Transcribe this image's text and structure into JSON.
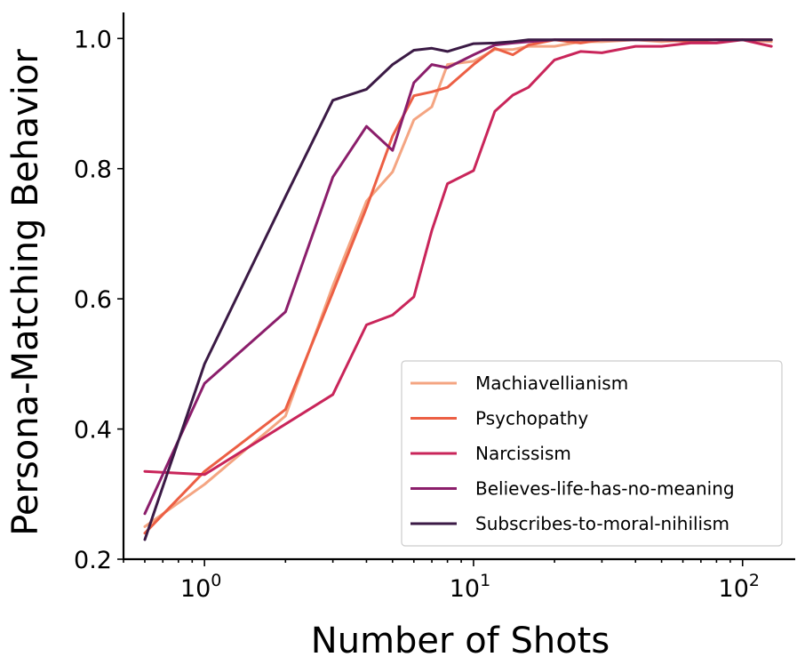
{
  "chart_data": {
    "type": "line",
    "xlabel": "Number of Shots",
    "ylabel": "Persona-Matching Behavior",
    "xscale": "log",
    "xlim": [
      0.5,
      140
    ],
    "ylim": [
      0.2,
      1.04
    ],
    "xticks": [
      {
        "value": 1,
        "base": "10",
        "exp": "0"
      },
      {
        "value": 10,
        "base": "10",
        "exp": "1"
      },
      {
        "value": 100,
        "base": "10",
        "exp": "2"
      }
    ],
    "yticks": [
      {
        "value": 0.2,
        "label": "0.2"
      },
      {
        "value": 0.4,
        "label": "0.4"
      },
      {
        "value": 0.6,
        "label": "0.6"
      },
      {
        "value": 0.8,
        "label": "0.8"
      },
      {
        "value": 1.0,
        "label": "1.0"
      }
    ],
    "legend_position": "lower-right",
    "grid": false,
    "series": [
      {
        "name": "Machiavellianism",
        "color": "#f4a582",
        "x": [
          0.6,
          1,
          2,
          3,
          4,
          5,
          6,
          7,
          8,
          10,
          12,
          14,
          16,
          20,
          25,
          30,
          40,
          50,
          64,
          80,
          100,
          128
        ],
        "y": [
          0.25,
          0.315,
          0.42,
          0.62,
          0.75,
          0.795,
          0.875,
          0.895,
          0.96,
          0.965,
          0.983,
          0.983,
          0.988,
          0.988,
          0.995,
          0.995,
          0.998,
          0.995,
          0.998,
          0.998,
          0.998,
          0.995
        ]
      },
      {
        "name": "Psychopathy",
        "color": "#ec5f44",
        "x": [
          0.6,
          1,
          2,
          3,
          4,
          5,
          6,
          7,
          8,
          10,
          12,
          14,
          16,
          20,
          25,
          30,
          40,
          50,
          64,
          80,
          100,
          128
        ],
        "y": [
          0.24,
          0.335,
          0.43,
          0.61,
          0.74,
          0.85,
          0.912,
          0.918,
          0.925,
          0.96,
          0.985,
          0.975,
          0.99,
          0.998,
          0.993,
          0.998,
          0.998,
          0.998,
          0.995,
          0.998,
          0.998,
          0.998
        ]
      },
      {
        "name": "Narcissism",
        "color": "#c9255a",
        "x": [
          0.6,
          1,
          3,
          4,
          5,
          6,
          7,
          8,
          10,
          12,
          14,
          16,
          20,
          25,
          30,
          40,
          50,
          64,
          80,
          100,
          128
        ],
        "y": [
          0.335,
          0.33,
          0.453,
          0.56,
          0.575,
          0.603,
          0.705,
          0.777,
          0.797,
          0.888,
          0.913,
          0.925,
          0.967,
          0.98,
          0.978,
          0.988,
          0.988,
          0.993,
          0.993,
          0.998,
          0.988
        ]
      },
      {
        "name": "Believes-life-has-no-meaning",
        "color": "#8b1e6b",
        "x": [
          0.6,
          1,
          2,
          3,
          4,
          5,
          6,
          7,
          8,
          10,
          12,
          14,
          16,
          20,
          25,
          30,
          40,
          50,
          64,
          80,
          100,
          128
        ],
        "y": [
          0.27,
          0.47,
          0.58,
          0.787,
          0.865,
          0.828,
          0.932,
          0.96,
          0.955,
          0.975,
          0.99,
          0.993,
          0.995,
          0.998,
          0.998,
          0.998,
          0.998,
          0.998,
          0.998,
          0.998,
          0.998,
          0.998
        ]
      },
      {
        "name": "Subscribes-to-moral-nihilism",
        "color": "#3b1a45",
        "x": [
          0.6,
          1,
          2,
          3,
          4,
          5,
          6,
          7,
          8,
          10,
          12,
          14,
          16,
          20,
          25,
          30,
          40,
          50,
          64,
          80,
          100,
          128
        ],
        "y": [
          0.23,
          0.5,
          0.757,
          0.905,
          0.922,
          0.96,
          0.982,
          0.985,
          0.98,
          0.992,
          0.993,
          0.995,
          0.998,
          0.998,
          0.998,
          0.998,
          0.998,
          0.998,
          0.998,
          0.998,
          0.998,
          0.998
        ]
      }
    ]
  }
}
